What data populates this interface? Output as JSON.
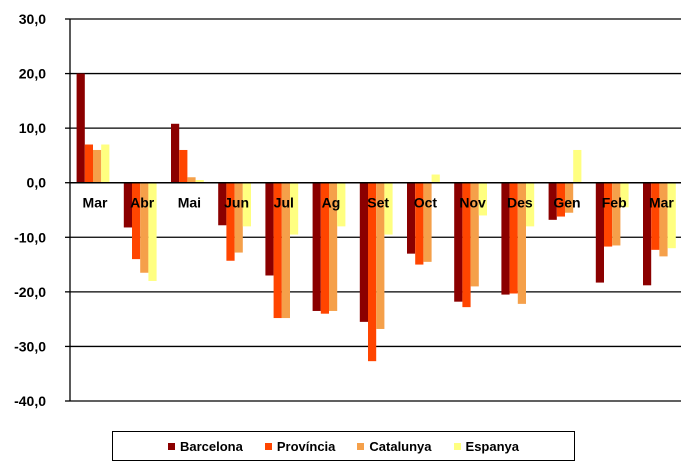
{
  "chart_data": {
    "type": "bar",
    "title": "",
    "xlabel": "",
    "ylabel": "",
    "ylim": [
      -40,
      30
    ],
    "yticks": [
      "30,0",
      "20,0",
      "10,0",
      "0,0",
      "-10,0",
      "-20,0",
      "-30,0",
      "-40,0"
    ],
    "grid": true,
    "legend_position": "bottom",
    "categories": [
      "Mar",
      "Abr",
      "Mai",
      "Jun",
      "Jul",
      "Ag",
      "Set",
      "Oct",
      "Nov",
      "Des",
      "Gen",
      "Feb",
      "Mar"
    ],
    "series": [
      {
        "name": "Barcelona",
        "color": "#8b0000",
        "values": [
          20.0,
          -8.2,
          10.8,
          -7.8,
          -17.0,
          -23.5,
          -25.5,
          -13.0,
          -21.8,
          -20.5,
          -6.8,
          -18.3,
          -18.8
        ]
      },
      {
        "name": "Província",
        "color": "#ff4500",
        "values": [
          7.0,
          -14.0,
          6.0,
          -14.3,
          -24.8,
          -24.0,
          -32.7,
          -15.0,
          -22.8,
          -20.3,
          -6.2,
          -11.7,
          -12.3
        ]
      },
      {
        "name": "Catalunya",
        "color": "#f5a04a",
        "values": [
          6.0,
          -16.5,
          1.0,
          -12.8,
          -24.8,
          -23.5,
          -26.8,
          -14.5,
          -19.0,
          -22.2,
          -5.5,
          -11.5,
          -13.5
        ]
      },
      {
        "name": "Espanya",
        "color": "#ffff80",
        "values": [
          7.0,
          -18.0,
          0.5,
          -8.0,
          -9.5,
          -8.0,
          -9.5,
          1.5,
          -6.0,
          -8.0,
          6.0,
          -4.5,
          -12.0
        ]
      }
    ]
  }
}
